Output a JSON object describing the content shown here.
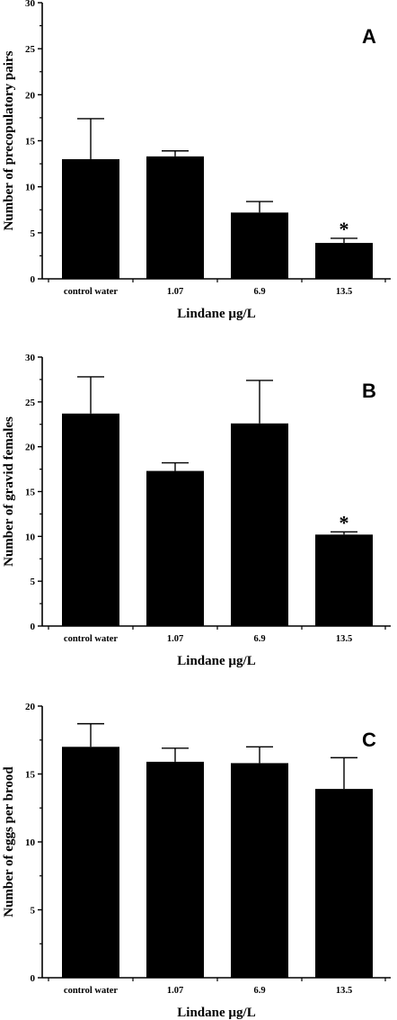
{
  "chart_data": [
    {
      "type": "bar",
      "panel_label": "A",
      "categories": [
        "control water",
        "1.07",
        "6.9",
        "13.5"
      ],
      "values": [
        13.0,
        13.3,
        7.2,
        3.9
      ],
      "errors": [
        4.4,
        0.6,
        1.2,
        0.5
      ],
      "significant": [
        false,
        false,
        false,
        true
      ],
      "significance_marker": "*",
      "xlabel": "Lindane µg/L",
      "ylabel": "Number of precopulatory pairs",
      "ylim": [
        0,
        30
      ],
      "yticks": [
        "0",
        "5",
        "10",
        "15",
        "20",
        "25",
        "30"
      ],
      "bar_color": "#000000",
      "grid": false
    },
    {
      "type": "bar",
      "panel_label": "B",
      "categories": [
        "control water",
        "1.07",
        "6.9",
        "13.5"
      ],
      "values": [
        23.7,
        17.3,
        22.6,
        10.2
      ],
      "errors": [
        4.1,
        0.9,
        4.8,
        0.3
      ],
      "significant": [
        false,
        false,
        false,
        true
      ],
      "significance_marker": "*",
      "xlabel": "Lindane µg/L",
      "ylabel": "Number of gravid females",
      "ylim": [
        0,
        30
      ],
      "yticks": [
        "0",
        "5",
        "10",
        "15",
        "20",
        "25",
        "30"
      ],
      "bar_color": "#000000",
      "grid": false
    },
    {
      "type": "bar",
      "panel_label": "C",
      "categories": [
        "control water",
        "1.07",
        "6.9",
        "13.5"
      ],
      "values": [
        17.0,
        15.9,
        15.8,
        13.9
      ],
      "errors": [
        1.7,
        1.0,
        1.2,
        2.3
      ],
      "significant": [
        false,
        false,
        false,
        false
      ],
      "significance_marker": "*",
      "xlabel": "Lindane µg/L",
      "ylabel": "Number of eggs per brood",
      "ylim": [
        0,
        20
      ],
      "yticks": [
        "0",
        "5",
        "10",
        "15",
        "20"
      ],
      "bar_color": "#000000",
      "grid": false
    }
  ]
}
